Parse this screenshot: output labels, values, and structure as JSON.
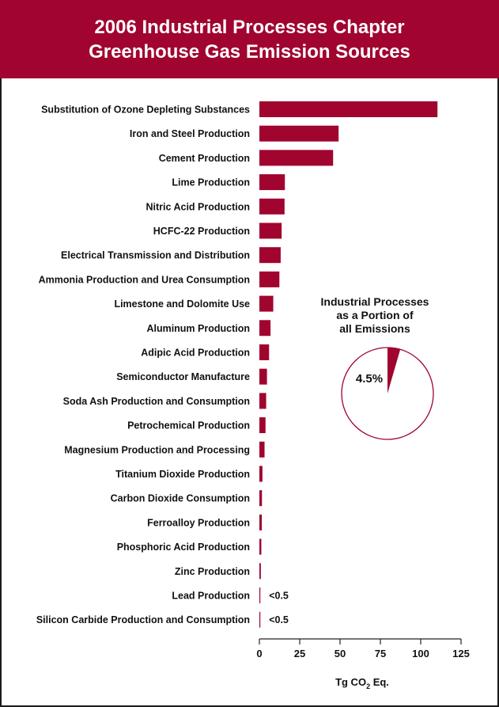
{
  "header": {
    "title_line1": "2006 Industrial Processes Chapter",
    "title_line2": "Greenhouse Gas Emission Sources"
  },
  "colors": {
    "accent": "#a0042f",
    "text": "#111111"
  },
  "chart_data": [
    {
      "type": "bar",
      "orientation": "horizontal",
      "categories": [
        "Substitution of Ozone Depleting Substances",
        "Iron and Steel Production",
        "Cement Production",
        "Lime Production",
        "Nitric Acid Production",
        "HCFC-22 Production",
        "Electrical Transmission and Distribution",
        "Ammonia Production and Urea Consumption",
        "Limestone and Dolomite Use",
        "Aluminum Production",
        "Adipic Acid Production",
        "Semiconductor Manufacture",
        "Soda Ash Production and Consumption",
        "Petrochemical Production",
        "Magnesium Production and Processing",
        "Titanium Dioxide Production",
        "Carbon Dioxide Consumption",
        "Ferroalloy Production",
        "Phosphoric Acid Production",
        "Zinc Production",
        "Lead Production",
        "Silicon Carbide Production and Consumption"
      ],
      "values": [
        110.4,
        49.1,
        45.7,
        15.8,
        15.6,
        13.8,
        13.2,
        12.4,
        8.6,
        6.9,
        6.0,
        4.7,
        4.2,
        3.8,
        3.2,
        1.9,
        1.6,
        1.5,
        1.2,
        0.9,
        0.3,
        0.2
      ],
      "value_labels": [
        "",
        "",
        "",
        "",
        "",
        "",
        "",
        "",
        "",
        "",
        "",
        "",
        "",
        "",
        "",
        "",
        "",
        "",
        "",
        "",
        "<0.5",
        "<0.5"
      ],
      "xlabel": "Tg CO",
      "xlabel_sub": "2",
      "xlabel_suffix": " Eq.",
      "xlim": [
        0,
        125
      ],
      "xticks": [
        0,
        25,
        50,
        75,
        100,
        125
      ],
      "xtick_labels": [
        "0",
        "25",
        "50",
        "75",
        "100",
        "125"
      ],
      "grid": false,
      "color": "#a0042f"
    },
    {
      "type": "pie",
      "title_lines": [
        "Industrial Processes",
        "as a Portion of",
        "all Emissions"
      ],
      "slices": [
        {
          "value": 4.5,
          "label": "4.5%",
          "color": "#a0042f"
        },
        {
          "value": 95.5,
          "label": "",
          "color": "#ffffff"
        }
      ]
    }
  ]
}
